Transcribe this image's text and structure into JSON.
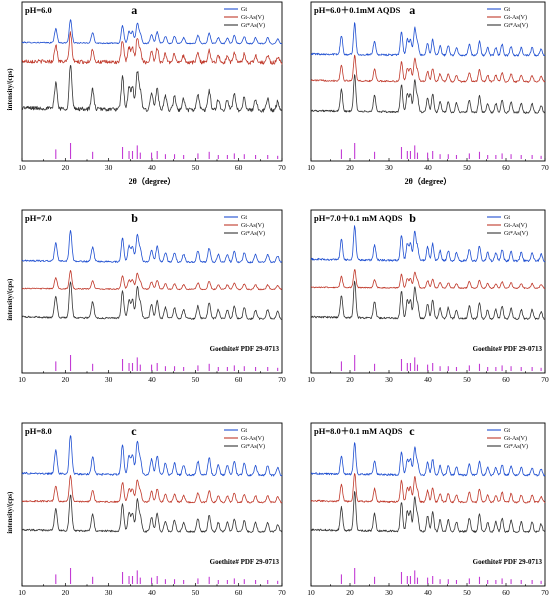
{
  "chart_data": [
    {
      "type": "line",
      "panel_letter": "a",
      "condition": "pH=6.0",
      "xlabel": "2θ（degree）",
      "ylabel": "intensity/(cps)",
      "xlim": [
        10,
        70
      ],
      "xticks": [
        10,
        20,
        30,
        40,
        50,
        60,
        70
      ],
      "legend_position": "top-right",
      "reference_label": "",
      "series": [
        {
          "name": "Gt",
          "color": "#1f4fd1",
          "level": 0.8,
          "noise": 0.05,
          "scale": 0.9
        },
        {
          "name": "Gt-As(V)",
          "color": "#c0392b",
          "level": 0.64,
          "noise": 0.13,
          "scale": 1.1
        },
        {
          "name": "Gt*As(V)",
          "color": "#333333",
          "level": 0.24,
          "noise": 0.09,
          "scale": 1.7
        }
      ],
      "reference_color": "#c23bd4",
      "reference_peaks": [
        {
          "x": 17.8,
          "h": 0.6
        },
        {
          "x": 21.2,
          "h": 1.0
        },
        {
          "x": 26.3,
          "h": 0.45
        },
        {
          "x": 33.2,
          "h": 0.75
        },
        {
          "x": 34.7,
          "h": 0.5
        },
        {
          "x": 35.5,
          "h": 0.5
        },
        {
          "x": 36.6,
          "h": 0.85
        },
        {
          "x": 37.3,
          "h": 0.4
        },
        {
          "x": 39.9,
          "h": 0.4
        },
        {
          "x": 41.2,
          "h": 0.5
        },
        {
          "x": 43.1,
          "h": 0.3
        },
        {
          "x": 45.2,
          "h": 0.3
        },
        {
          "x": 47.3,
          "h": 0.25
        },
        {
          "x": 50.6,
          "h": 0.35
        },
        {
          "x": 53.2,
          "h": 0.45
        },
        {
          "x": 55.3,
          "h": 0.25
        },
        {
          "x": 57.4,
          "h": 0.25
        },
        {
          "x": 59.0,
          "h": 0.35
        },
        {
          "x": 61.3,
          "h": 0.3
        },
        {
          "x": 63.9,
          "h": 0.25
        },
        {
          "x": 66.7,
          "h": 0.25
        },
        {
          "x": 69.0,
          "h": 0.2
        }
      ]
    },
    {
      "type": "line",
      "panel_letter": "a",
      "condition": "pH=6.0＋0.1mM AQDS",
      "xlabel": "2θ（degree）",
      "ylabel": "",
      "xlim": [
        10,
        70
      ],
      "xticks": [
        10,
        20,
        30,
        40,
        50,
        60,
        70
      ],
      "legend_position": "top-right",
      "reference_label": "",
      "series": [
        {
          "name": "Gt",
          "color": "#1f4fd1",
          "level": 0.7,
          "noise": 0.06,
          "scale": 1.2
        },
        {
          "name": "Gt-As(V)",
          "color": "#c0392b",
          "level": 0.48,
          "noise": 0.06,
          "scale": 1.0
        },
        {
          "name": "Gt*As(V)",
          "color": "#333333",
          "level": 0.22,
          "noise": 0.05,
          "scale": 1.4
        }
      ],
      "reference_color": "#c23bd4",
      "reference_peaks": [
        {
          "x": 17.8,
          "h": 0.6
        },
        {
          "x": 21.2,
          "h": 1.0
        },
        {
          "x": 26.3,
          "h": 0.45
        },
        {
          "x": 33.2,
          "h": 0.75
        },
        {
          "x": 34.7,
          "h": 0.5
        },
        {
          "x": 35.5,
          "h": 0.5
        },
        {
          "x": 36.6,
          "h": 0.85
        },
        {
          "x": 37.3,
          "h": 0.4
        },
        {
          "x": 39.9,
          "h": 0.4
        },
        {
          "x": 41.2,
          "h": 0.5
        },
        {
          "x": 43.1,
          "h": 0.3
        },
        {
          "x": 45.2,
          "h": 0.3
        },
        {
          "x": 47.3,
          "h": 0.25
        },
        {
          "x": 50.6,
          "h": 0.35
        },
        {
          "x": 53.2,
          "h": 0.45
        },
        {
          "x": 55.3,
          "h": 0.25
        },
        {
          "x": 57.4,
          "h": 0.25
        },
        {
          "x": 59.0,
          "h": 0.35
        },
        {
          "x": 61.3,
          "h": 0.3
        },
        {
          "x": 63.9,
          "h": 0.25
        },
        {
          "x": 66.7,
          "h": 0.25
        },
        {
          "x": 69.0,
          "h": 0.2
        }
      ]
    },
    {
      "type": "line",
      "panel_letter": "b",
      "condition": "pH=7.0",
      "xlabel": "",
      "ylabel": "intensity/(cps)",
      "xlim": [
        10,
        70
      ],
      "xticks": [
        10,
        20,
        30,
        40,
        50,
        60,
        70
      ],
      "legend_position": "top-right",
      "reference_label": "Goethite# PDF 29-0713",
      "series": [
        {
          "name": "Gt",
          "color": "#1f4fd1",
          "level": 0.72,
          "noise": 0.05,
          "scale": 1.2
        },
        {
          "name": "Gt-As(V)",
          "color": "#c0392b",
          "level": 0.5,
          "noise": 0.06,
          "scale": 0.7
        },
        {
          "name": "Gt*As(V)",
          "color": "#333333",
          "level": 0.26,
          "noise": 0.05,
          "scale": 1.4
        }
      ],
      "reference_color": "#c23bd4",
      "reference_peaks": [
        {
          "x": 17.8,
          "h": 0.6
        },
        {
          "x": 21.2,
          "h": 1.0
        },
        {
          "x": 26.3,
          "h": 0.45
        },
        {
          "x": 33.2,
          "h": 0.75
        },
        {
          "x": 34.7,
          "h": 0.5
        },
        {
          "x": 35.5,
          "h": 0.5
        },
        {
          "x": 36.6,
          "h": 0.85
        },
        {
          "x": 37.3,
          "h": 0.4
        },
        {
          "x": 39.9,
          "h": 0.4
        },
        {
          "x": 41.2,
          "h": 0.5
        },
        {
          "x": 43.1,
          "h": 0.3
        },
        {
          "x": 45.2,
          "h": 0.3
        },
        {
          "x": 47.3,
          "h": 0.25
        },
        {
          "x": 50.6,
          "h": 0.35
        },
        {
          "x": 53.2,
          "h": 0.45
        },
        {
          "x": 55.3,
          "h": 0.25
        },
        {
          "x": 57.4,
          "h": 0.25
        },
        {
          "x": 59.0,
          "h": 0.35
        },
        {
          "x": 61.3,
          "h": 0.3
        },
        {
          "x": 63.9,
          "h": 0.25
        },
        {
          "x": 66.7,
          "h": 0.25
        },
        {
          "x": 69.0,
          "h": 0.2
        }
      ]
    },
    {
      "type": "line",
      "panel_letter": "b",
      "condition": "pH=7.0＋0.1 mM AQDS",
      "xlabel": "",
      "ylabel": "",
      "xlim": [
        10,
        70
      ],
      "xticks": [
        10,
        20,
        30,
        40,
        50,
        60,
        70
      ],
      "legend_position": "top-right",
      "reference_label": "Goethite# PDF 29-0713",
      "series": [
        {
          "name": "Gt",
          "color": "#1f4fd1",
          "level": 0.73,
          "noise": 0.06,
          "scale": 1.3
        },
        {
          "name": "Gt-As(V)",
          "color": "#c0392b",
          "level": 0.51,
          "noise": 0.06,
          "scale": 0.7
        },
        {
          "name": "Gt*As(V)",
          "color": "#333333",
          "level": 0.26,
          "noise": 0.05,
          "scale": 1.4
        }
      ],
      "reference_color": "#c23bd4",
      "reference_peaks": [
        {
          "x": 17.8,
          "h": 0.6
        },
        {
          "x": 21.2,
          "h": 1.0
        },
        {
          "x": 26.3,
          "h": 0.45
        },
        {
          "x": 33.2,
          "h": 0.75
        },
        {
          "x": 34.7,
          "h": 0.5
        },
        {
          "x": 35.5,
          "h": 0.5
        },
        {
          "x": 36.6,
          "h": 0.85
        },
        {
          "x": 37.3,
          "h": 0.4
        },
        {
          "x": 39.9,
          "h": 0.4
        },
        {
          "x": 41.2,
          "h": 0.5
        },
        {
          "x": 43.1,
          "h": 0.3
        },
        {
          "x": 45.2,
          "h": 0.3
        },
        {
          "x": 47.3,
          "h": 0.25
        },
        {
          "x": 50.6,
          "h": 0.35
        },
        {
          "x": 53.2,
          "h": 0.45
        },
        {
          "x": 55.3,
          "h": 0.25
        },
        {
          "x": 57.4,
          "h": 0.25
        },
        {
          "x": 59.0,
          "h": 0.35
        },
        {
          "x": 61.3,
          "h": 0.3
        },
        {
          "x": 63.9,
          "h": 0.25
        },
        {
          "x": 66.7,
          "h": 0.25
        },
        {
          "x": 69.0,
          "h": 0.2
        }
      ]
    },
    {
      "type": "line",
      "panel_letter": "c",
      "condition": "pH=8.0",
      "xlabel": "",
      "ylabel": "intensity/(cps)",
      "xlim": [
        10,
        70
      ],
      "xticks": [
        10,
        20,
        30,
        40,
        50,
        60,
        70
      ],
      "legend_position": "top-right",
      "reference_label": "Goethite# PDF 29-0713",
      "series": [
        {
          "name": "Gt",
          "color": "#1f4fd1",
          "level": 0.72,
          "noise": 0.05,
          "scale": 1.5
        },
        {
          "name": "Gt-As(V)",
          "color": "#c0392b",
          "level": 0.5,
          "noise": 0.06,
          "scale": 1.0
        },
        {
          "name": "Gt*As(V)",
          "color": "#333333",
          "level": 0.26,
          "noise": 0.05,
          "scale": 1.4
        }
      ],
      "reference_color": "#c23bd4",
      "reference_peaks": [
        {
          "x": 17.8,
          "h": 0.6
        },
        {
          "x": 21.2,
          "h": 1.0
        },
        {
          "x": 26.3,
          "h": 0.45
        },
        {
          "x": 33.2,
          "h": 0.75
        },
        {
          "x": 34.7,
          "h": 0.5
        },
        {
          "x": 35.5,
          "h": 0.5
        },
        {
          "x": 36.6,
          "h": 0.85
        },
        {
          "x": 37.3,
          "h": 0.4
        },
        {
          "x": 39.9,
          "h": 0.4
        },
        {
          "x": 41.2,
          "h": 0.5
        },
        {
          "x": 43.1,
          "h": 0.3
        },
        {
          "x": 45.2,
          "h": 0.3
        },
        {
          "x": 47.3,
          "h": 0.25
        },
        {
          "x": 50.6,
          "h": 0.35
        },
        {
          "x": 53.2,
          "h": 0.45
        },
        {
          "x": 55.3,
          "h": 0.25
        },
        {
          "x": 57.4,
          "h": 0.25
        },
        {
          "x": 59.0,
          "h": 0.35
        },
        {
          "x": 61.3,
          "h": 0.3
        },
        {
          "x": 63.9,
          "h": 0.25
        },
        {
          "x": 66.7,
          "h": 0.25
        },
        {
          "x": 69.0,
          "h": 0.2
        }
      ]
    },
    {
      "type": "line",
      "panel_letter": "c",
      "condition": "pH=8.0＋0.1 mM AQDS",
      "xlabel": "",
      "ylabel": "",
      "xlim": [
        10,
        70
      ],
      "xticks": [
        10,
        20,
        30,
        40,
        50,
        60,
        70
      ],
      "legend_position": "top-right",
      "reference_label": "Goethite# PDF 29-0713",
      "series": [
        {
          "name": "Gt",
          "color": "#1f4fd1",
          "level": 0.72,
          "noise": 0.06,
          "scale": 1.2
        },
        {
          "name": "Gt-As(V)",
          "color": "#c0392b",
          "level": 0.5,
          "noise": 0.06,
          "scale": 1.1
        },
        {
          "name": "Gt*As(V)",
          "color": "#333333",
          "level": 0.26,
          "noise": 0.05,
          "scale": 1.5
        }
      ],
      "reference_color": "#c23bd4",
      "reference_peaks": [
        {
          "x": 17.8,
          "h": 0.6
        },
        {
          "x": 21.2,
          "h": 1.0
        },
        {
          "x": 26.3,
          "h": 0.45
        },
        {
          "x": 33.2,
          "h": 0.75
        },
        {
          "x": 34.7,
          "h": 0.5
        },
        {
          "x": 35.5,
          "h": 0.5
        },
        {
          "x": 36.6,
          "h": 0.85
        },
        {
          "x": 37.3,
          "h": 0.4
        },
        {
          "x": 39.9,
          "h": 0.4
        },
        {
          "x": 41.2,
          "h": 0.5
        },
        {
          "x": 43.1,
          "h": 0.3
        },
        {
          "x": 45.2,
          "h": 0.3
        },
        {
          "x": 47.3,
          "h": 0.25
        },
        {
          "x": 50.6,
          "h": 0.35
        },
        {
          "x": 53.2,
          "h": 0.45
        },
        {
          "x": 55.3,
          "h": 0.25
        },
        {
          "x": 57.4,
          "h": 0.25
        },
        {
          "x": 59.0,
          "h": 0.35
        },
        {
          "x": 61.3,
          "h": 0.3
        },
        {
          "x": 63.9,
          "h": 0.25
        },
        {
          "x": 66.7,
          "h": 0.25
        },
        {
          "x": 69.0,
          "h": 0.2
        }
      ]
    }
  ]
}
